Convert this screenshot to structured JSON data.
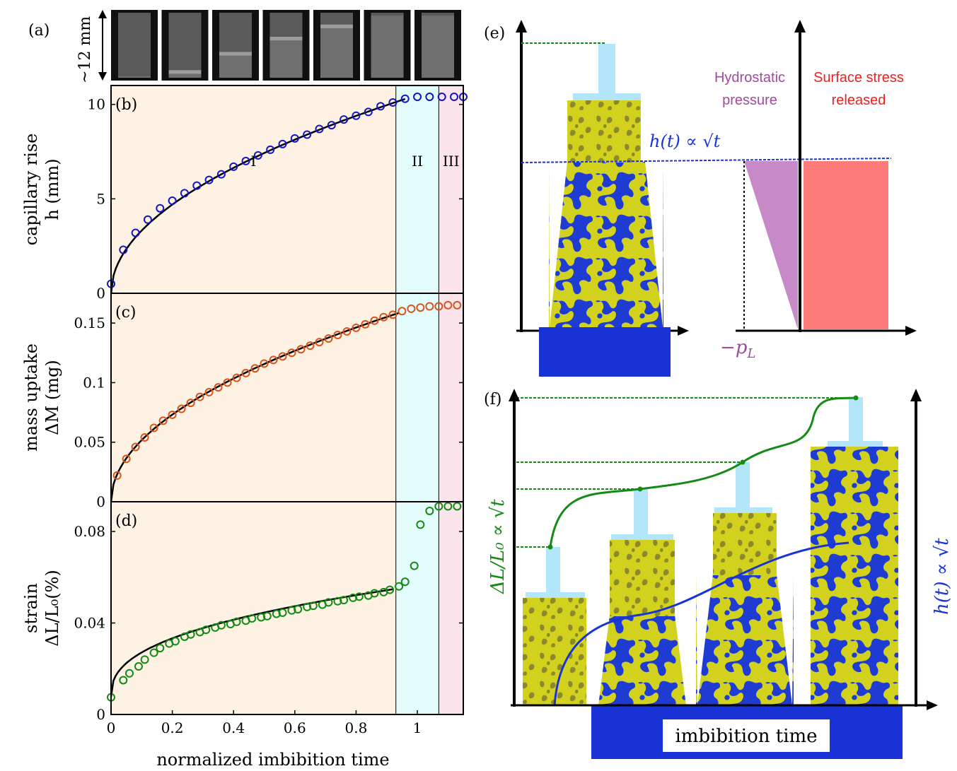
{
  "colors": {
    "region_I": "#fdf2e3",
    "region_II": "#e3fcfc",
    "region_III": "#fbe4ec",
    "height_markers": "#1515c8",
    "mass_markers": "#d9541b",
    "strain_markers": "#138a13",
    "fit_line": "#000000",
    "hydrostatic": "#c889c8",
    "surface_stress": "#fd7b7b",
    "reservoir": "#1a33d6",
    "piston": "#b3e5fb",
    "material_yellow": "#d2d21e",
    "material_blue": "#1e3cd2",
    "guide_green": "#158a15"
  },
  "panel_a": {
    "label": "(a)",
    "scale": "~12 mm",
    "frame_count": 7,
    "frame_fill_levels": [
      0.0,
      0.1,
      0.4,
      0.65,
      0.85,
      1.0,
      1.0
    ]
  },
  "chart_data": [
    {
      "type": "scatter",
      "panel": "(b)",
      "ylabel": [
        "capillary rise",
        "h (mm)"
      ],
      "xlim": [
        0,
        1.15
      ],
      "ylim": [
        0,
        11
      ],
      "yticks": [
        "0",
        "5",
        "10"
      ],
      "ytick_values": [
        0,
        5,
        10
      ],
      "regions": [
        {
          "label": "I",
          "x0": 0,
          "x1": 0.93
        },
        {
          "label": "II",
          "x0": 0.93,
          "x1": 1.07
        },
        {
          "label": "III",
          "x0": 1.07,
          "x1": 1.15
        }
      ],
      "fit": {
        "form": "a*sqrt(x)",
        "a": 10.5,
        "x_end": 0.96
      },
      "x": [
        0.0,
        0.04,
        0.08,
        0.12,
        0.16,
        0.2,
        0.24,
        0.28,
        0.32,
        0.36,
        0.4,
        0.44,
        0.48,
        0.52,
        0.56,
        0.6,
        0.64,
        0.68,
        0.72,
        0.76,
        0.8,
        0.84,
        0.88,
        0.92,
        0.96,
        1.0,
        1.04,
        1.08,
        1.12,
        1.15
      ],
      "y": [
        0.5,
        2.3,
        3.2,
        3.9,
        4.5,
        4.9,
        5.3,
        5.7,
        6.0,
        6.3,
        6.7,
        7.0,
        7.3,
        7.6,
        7.9,
        8.2,
        8.4,
        8.7,
        8.9,
        9.2,
        9.4,
        9.6,
        9.9,
        10.1,
        10.3,
        10.4,
        10.4,
        10.4,
        10.4,
        10.4
      ]
    },
    {
      "type": "scatter",
      "panel": "(c)",
      "ylabel": [
        "mass uptake",
        "ΔM (mg)"
      ],
      "xlim": [
        0,
        1.15
      ],
      "ylim": [
        0,
        0.175
      ],
      "yticks": [
        "0",
        "0.05",
        "0.1",
        "0.15"
      ],
      "ytick_values": [
        0,
        0.05,
        0.1,
        0.15
      ],
      "regions": [
        {
          "label": "",
          "x0": 0,
          "x1": 0.93
        },
        {
          "label": "",
          "x0": 0.93,
          "x1": 1.07
        },
        {
          "label": "",
          "x0": 1.07,
          "x1": 1.15
        }
      ],
      "fit": {
        "form": "a*sqrt(x)",
        "a": 0.1635,
        "x_end": 0.94
      },
      "x": [
        0.02,
        0.05,
        0.08,
        0.11,
        0.14,
        0.17,
        0.2,
        0.23,
        0.26,
        0.29,
        0.32,
        0.35,
        0.38,
        0.41,
        0.44,
        0.47,
        0.5,
        0.53,
        0.56,
        0.59,
        0.62,
        0.65,
        0.68,
        0.71,
        0.74,
        0.77,
        0.8,
        0.83,
        0.86,
        0.89,
        0.92,
        0.95,
        0.98,
        1.01,
        1.04,
        1.07,
        1.1,
        1.13
      ],
      "y": [
        0.022,
        0.036,
        0.046,
        0.054,
        0.062,
        0.068,
        0.073,
        0.078,
        0.083,
        0.088,
        0.092,
        0.096,
        0.1,
        0.104,
        0.108,
        0.112,
        0.116,
        0.119,
        0.122,
        0.125,
        0.128,
        0.131,
        0.134,
        0.137,
        0.14,
        0.143,
        0.146,
        0.149,
        0.152,
        0.155,
        0.157,
        0.16,
        0.162,
        0.163,
        0.164,
        0.164,
        0.165,
        0.165
      ]
    },
    {
      "type": "scatter",
      "panel": "(d)",
      "ylabel": [
        "strain",
        "ΔL/L₀(%)"
      ],
      "xlabel": "normalized imbibition time",
      "xlim": [
        0,
        1.15
      ],
      "ylim": [
        0,
        0.093
      ],
      "xticks": [
        "0",
        "0.2",
        "0.4",
        "0.6",
        "0.8",
        "1"
      ],
      "xtick_values": [
        0,
        0.2,
        0.4,
        0.6,
        0.8,
        1.0
      ],
      "yticks": [
        "0",
        "0.04",
        "0.08"
      ],
      "ytick_values": [
        0,
        0.04,
        0.08
      ],
      "regions": [
        {
          "label": "",
          "x0": 0,
          "x1": 0.93
        },
        {
          "label": "",
          "x0": 0.93,
          "x1": 1.07
        },
        {
          "label": "",
          "x0": 1.07,
          "x1": 1.15
        }
      ],
      "fit": {
        "form": "a*x^0.4+b",
        "a": 0.0485,
        "b": 0.0078,
        "x_end": 0.92
      },
      "x": [
        0.0,
        0.04,
        0.06,
        0.09,
        0.11,
        0.14,
        0.16,
        0.19,
        0.21,
        0.24,
        0.26,
        0.29,
        0.31,
        0.34,
        0.36,
        0.39,
        0.41,
        0.44,
        0.46,
        0.49,
        0.51,
        0.54,
        0.56,
        0.59,
        0.61,
        0.64,
        0.66,
        0.69,
        0.71,
        0.74,
        0.76,
        0.79,
        0.81,
        0.84,
        0.86,
        0.89,
        0.91,
        0.94,
        0.96,
        0.99,
        1.01,
        1.04,
        1.07,
        1.1,
        1.13
      ],
      "y": [
        0.0075,
        0.015,
        0.018,
        0.021,
        0.024,
        0.027,
        0.029,
        0.031,
        0.032,
        0.034,
        0.035,
        0.036,
        0.037,
        0.038,
        0.039,
        0.0395,
        0.0405,
        0.041,
        0.042,
        0.0425,
        0.043,
        0.044,
        0.0445,
        0.0455,
        0.046,
        0.047,
        0.0475,
        0.048,
        0.049,
        0.0495,
        0.05,
        0.051,
        0.0515,
        0.052,
        0.053,
        0.0535,
        0.0545,
        0.056,
        0.058,
        0.065,
        0.083,
        0.089,
        0.091,
        0.091,
        0.091
      ]
    }
  ],
  "panel_e": {
    "label": "(e)",
    "eq": "h(t) ∝ √t",
    "hydrostatic_label": [
      "Hydrostatic",
      "pressure"
    ],
    "surface_label": [
      "Surface stress",
      "released"
    ],
    "pressure_label": "−p",
    "pressure_subscript": "L"
  },
  "panel_f": {
    "label": "(f)",
    "strain_label": "ΔL/L₀ ∝ √t",
    "height_label": "h(t) ∝ √t",
    "xlabel": "imbibition time"
  }
}
